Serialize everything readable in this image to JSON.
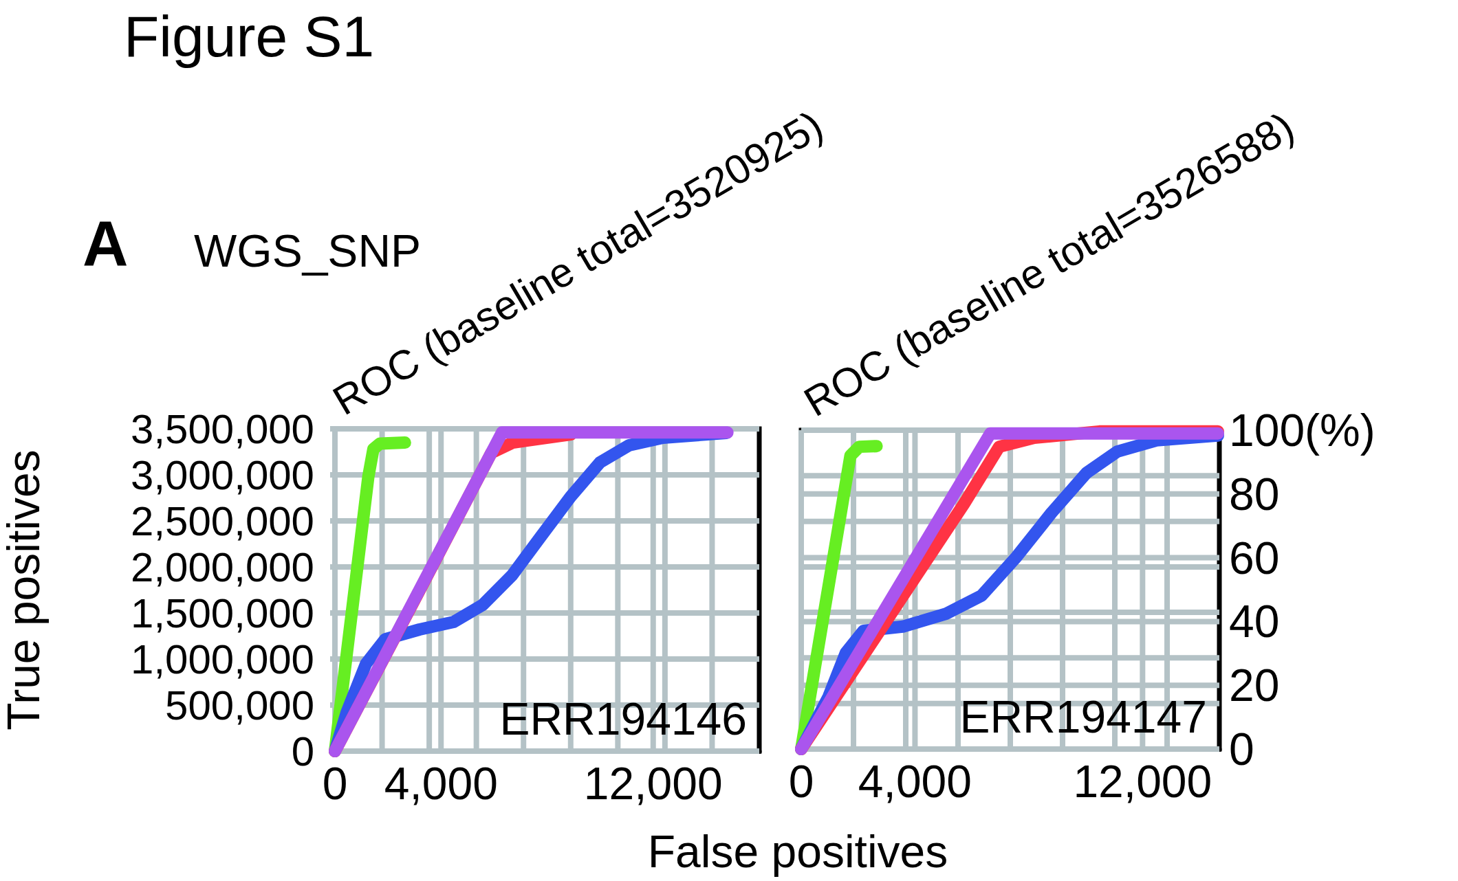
{
  "chart_data": [
    {
      "type": "line",
      "title": "ROC (baseline total=3520925)",
      "xlabel": "False positives",
      "ylabel": "True positives",
      "annotations": [
        "Figure S1",
        "A",
        "WGS_SNP",
        "ERR194146"
      ],
      "xlim": [
        0,
        16000
      ],
      "xticks": [
        0,
        {
          "value": 1778,
          "label": null
        },
        {
          "value": 3556,
          "label": null
        },
        {
          "value": 4000,
          "label": "4,000"
        },
        {
          "value": 5333,
          "label": null
        },
        {
          "value": 7111,
          "label": null
        },
        {
          "value": 8889,
          "label": null
        },
        {
          "value": 10667,
          "label": null
        },
        {
          "value": 12000,
          "label": "12,000"
        },
        {
          "value": 12444,
          "label": null
        },
        {
          "value": 14222,
          "label": null
        }
      ],
      "ylim": [
        0,
        3500000
      ],
      "yticks": [
        0,
        {
          "value": 500000,
          "label": "500,000"
        },
        {
          "value": 1000000,
          "label": "1,000,000"
        },
        {
          "value": 1500000,
          "label": "1,500,000"
        },
        {
          "value": 2000000,
          "label": "2,000,000"
        },
        {
          "value": 2500000,
          "label": "2,500,000"
        },
        {
          "value": 3000000,
          "label": "3,000,000"
        },
        {
          "value": 3500000,
          "label": "3,500,000"
        }
      ],
      "grid": true,
      "series": [
        {
          "color": "#66ee22",
          "x": [
            0,
            1260,
            1450,
            1700,
            2640
          ],
          "values": [
            0,
            2980000,
            3280000,
            3340000,
            3350000
          ]
        },
        {
          "color": "#3355ee",
          "x": [
            0,
            440,
            1170,
            1900,
            3190,
            4480,
            5580,
            6680,
            7780,
            8880,
            9990,
            11090,
            12370,
            14760
          ],
          "values": [
            0,
            418000,
            948000,
            1216000,
            1321000,
            1403000,
            1590000,
            1910000,
            2336000,
            2761000,
            3134000,
            3321000,
            3403000,
            3455000
          ]
        },
        {
          "color": "#ff3344",
          "x": [
            0,
            3000,
            5900,
            6700,
            8900
          ],
          "values": [
            0,
            1640000,
            3240000,
            3350000,
            3440000
          ]
        },
        {
          "color": "#aa55ee",
          "x": [
            0,
            6300,
            14800
          ],
          "values": [
            0,
            3460000,
            3460000
          ]
        }
      ]
    },
    {
      "type": "line",
      "title": "ROC (baseline total=3526588)",
      "annotations": [
        "ERR194147"
      ],
      "xlim": [
        0,
        14700
      ],
      "xticks": [
        0,
        {
          "value": 1838,
          "label": null
        },
        {
          "value": 3675,
          "label": null
        },
        {
          "value": 4000,
          "label": "4,000"
        },
        {
          "value": 5513,
          "label": null
        },
        {
          "value": 7350,
          "label": null
        },
        {
          "value": 9188,
          "label": null
        },
        {
          "value": 11025,
          "label": null
        },
        {
          "value": 12000,
          "label": "12,000"
        },
        {
          "value": 12863,
          "label": null
        }
      ],
      "y2lim": [
        0,
        100
      ],
      "y2ticks": [
        0,
        {
          "value": 14.3,
          "label": null
        },
        20,
        {
          "value": 28.6,
          "label": null
        },
        40,
        {
          "value": 42.9,
          "label": null
        },
        {
          "value": 57.1,
          "label": null
        },
        60,
        {
          "value": 71.4,
          "label": null
        },
        80,
        {
          "value": 85.7,
          "label": null
        },
        {
          "value": 100,
          "label": "100(%)"
        }
      ],
      "grid": true,
      "series": [
        {
          "color": "#66ee22",
          "axis": "y2",
          "x": [
            0,
            1730,
            2040,
            2650
          ],
          "values": [
            0,
            92,
            94.8,
            95
          ]
        },
        {
          "color": "#3355ee",
          "axis": "y2",
          "x": [
            0,
            960,
            1570,
            2190,
            3570,
            5110,
            6340,
            7570,
            8800,
            10030,
            11110,
            12490,
            14650
          ],
          "values": [
            0,
            16.4,
            30.2,
            37.1,
            38.4,
            42.5,
            48.1,
            60.3,
            74.1,
            86.6,
            93.3,
            96.8,
            98.3
          ]
        },
        {
          "color": "#ff3344",
          "axis": "y2",
          "x": [
            0,
            4190,
            5730,
            6960,
            8190,
            10480,
            14650
          ],
          "values": [
            0,
            56.3,
            77,
            94.8,
            97.6,
            99.6,
            99.6
          ]
        },
        {
          "color": "#aa55ee",
          "axis": "y2",
          "x": [
            0,
            6650,
            14650
          ],
          "values": [
            0,
            99,
            99
          ]
        }
      ]
    }
  ]
}
